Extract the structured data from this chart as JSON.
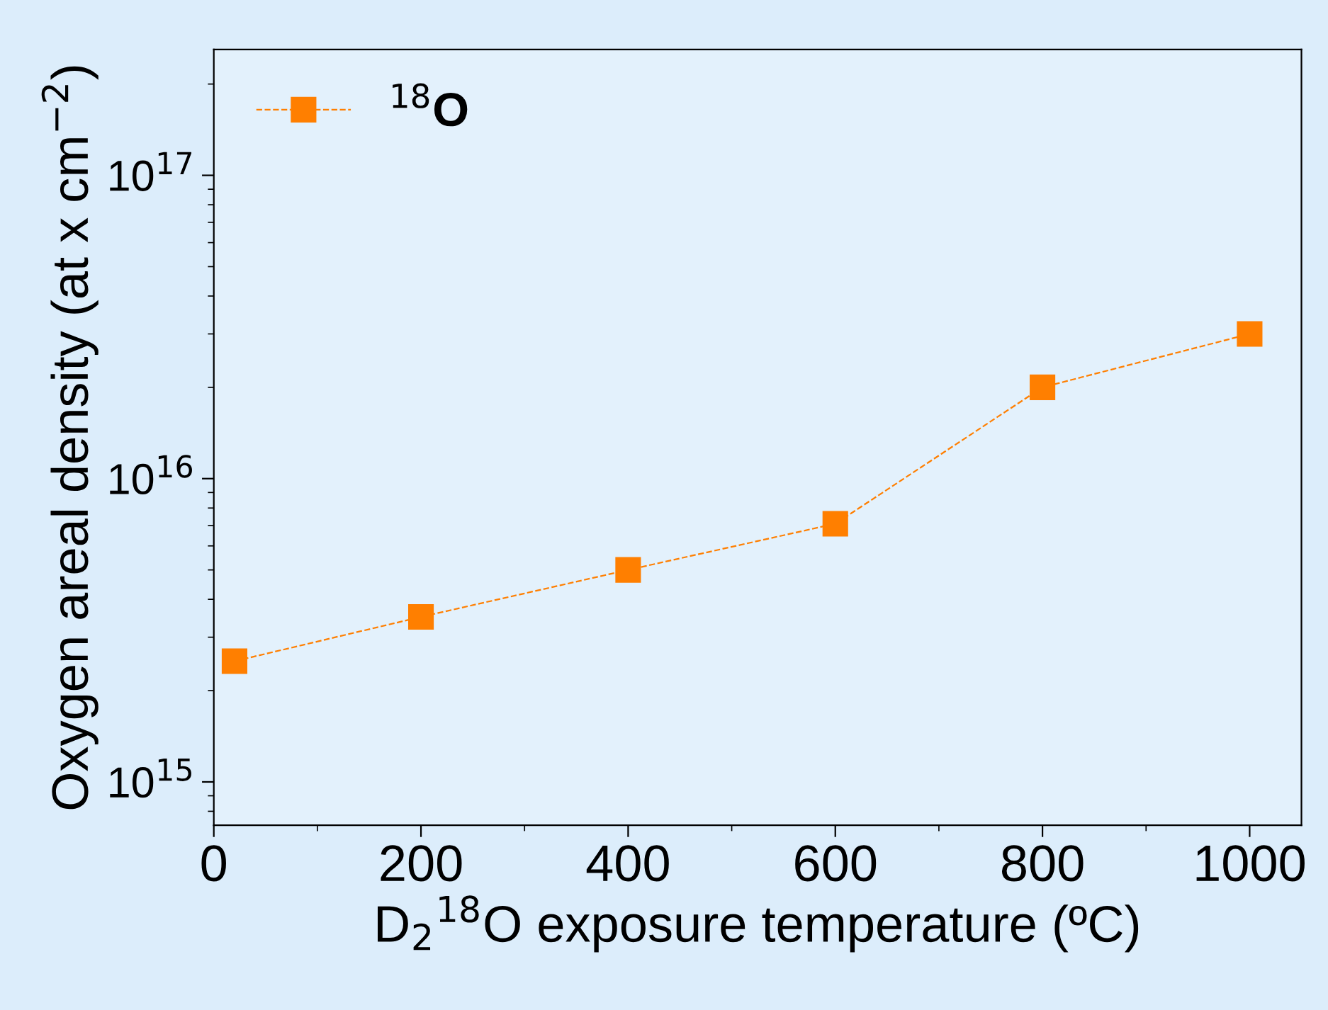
{
  "chart_data": {
    "type": "line",
    "xlabel": "D$_{2}$$^{18}$O exposure temperature (ºC)",
    "ylabel": "Oxygen areal density (at x cm$^{−2}$)",
    "series": [
      {
        "name": "$^{18}$O",
        "color": "#ff7f00",
        "x": [
          20,
          200,
          400,
          600,
          800,
          1000
        ],
        "values": [
          2500000000000000.0,
          3500000000000000.0,
          5000000000000000.0,
          7100000000000000.0,
          2e+16,
          3e+16
        ]
      }
    ],
    "log": "y",
    "xlim": [
      0,
      1050
    ],
    "ylim": [
      720000000000000.0,
      2.6e+17
    ],
    "xticks": [
      0,
      200,
      400,
      600,
      800,
      1000
    ],
    "yticks": [
      {
        "value": 1000000000000000.0,
        "label": "10$^{15}$"
      },
      {
        "value": 1e+16,
        "label": "10$^{16}$"
      },
      {
        "value": 1e+17,
        "label": "10$^{17}$"
      }
    ],
    "marker": "square",
    "line_style": "dashed",
    "legend": "top left",
    "grid": false
  }
}
